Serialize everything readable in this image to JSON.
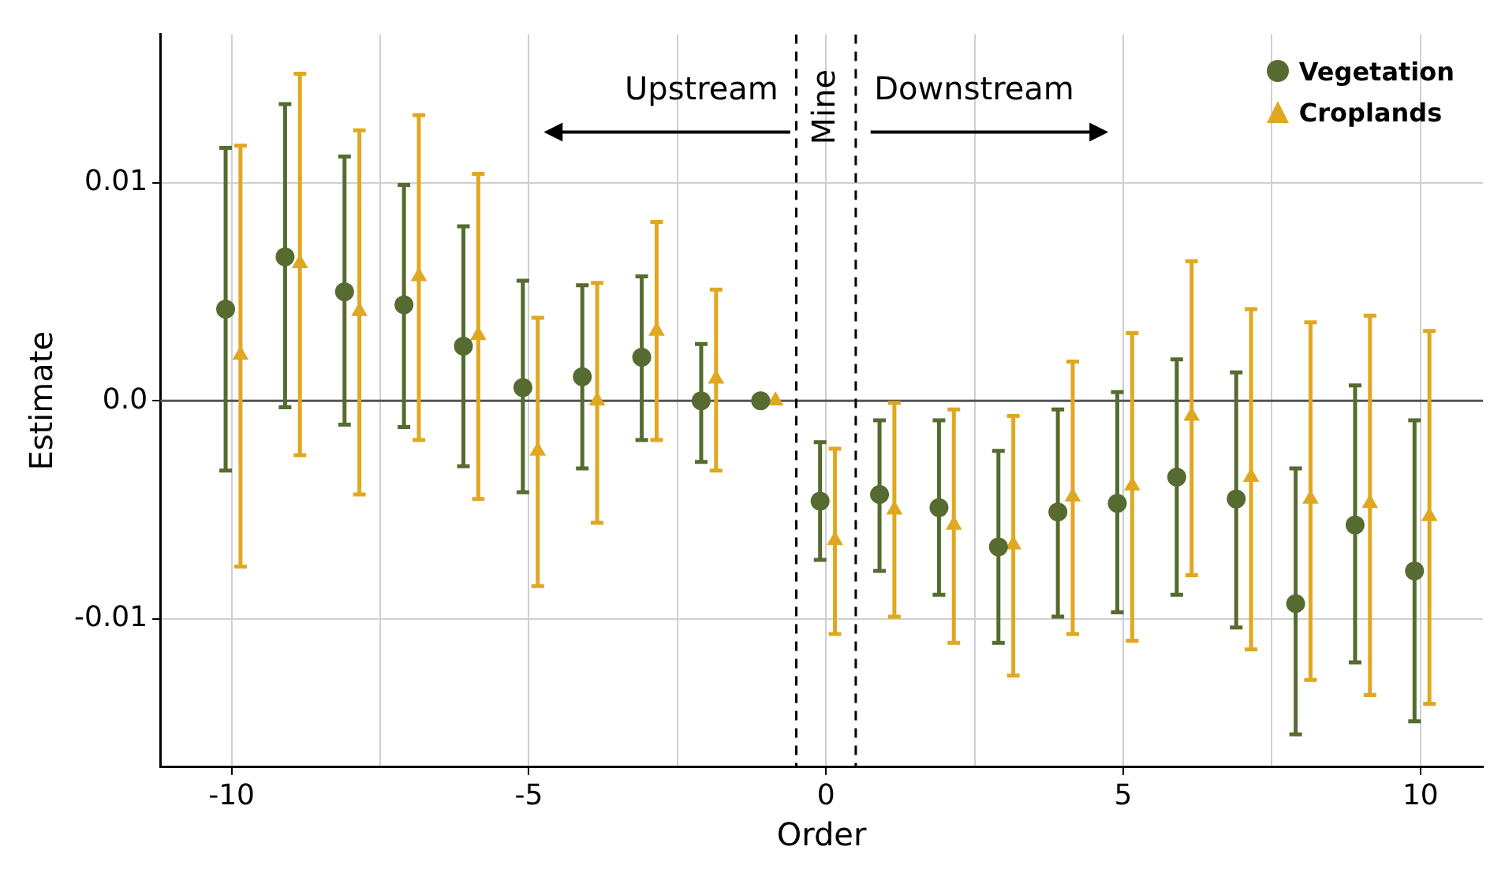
{
  "chart_data": {
    "type": "scatter",
    "xlabel": "Order",
    "ylabel": "Estimate",
    "xlim": [
      -11.2,
      11.05
    ],
    "ylim": [
      -0.0168,
      0.0168
    ],
    "xticks": [
      -10,
      {
        "value": -7.5,
        "label": null
      },
      -5,
      {
        "value": -2.5,
        "label": null
      },
      0,
      {
        "value": 2.5,
        "label": null
      },
      5,
      {
        "value": 7.5,
        "label": null
      },
      10
    ],
    "yticks": [
      {
        "value": -0.01,
        "label": "-0.01"
      },
      {
        "value": 0,
        "label": "0.0"
      },
      {
        "value": 0.01,
        "label": "0.01"
      }
    ],
    "grid": true,
    "legend": "top right",
    "series": [
      {
        "name": "Vegetation",
        "color": "#556b2f",
        "marker": "circle",
        "x": [
          -10.1,
          -9.1,
          -8.1,
          -7.1,
          -6.1,
          -5.1,
          -4.1,
          -3.1,
          -2.1,
          -1.1,
          -0.1,
          0.9,
          1.9,
          2.9,
          3.9,
          4.9,
          5.9,
          6.9,
          7.9,
          8.9,
          9.9
        ],
        "values": [
          0.0042,
          0.0066,
          0.005,
          0.0044,
          0.0025,
          0.0006,
          0.0011,
          0.002,
          0.0,
          0.0,
          -0.0046,
          -0.0043,
          -0.0049,
          -0.0067,
          -0.0051,
          -0.0047,
          -0.0035,
          -0.0045,
          -0.0093,
          -0.0057,
          -0.0078
        ],
        "errors": [
          [
            -0.0032,
            0.0116
          ],
          [
            -0.0003,
            0.0136
          ],
          [
            -0.0011,
            0.0112
          ],
          [
            -0.0012,
            0.0099
          ],
          [
            -0.003,
            0.008
          ],
          [
            -0.0042,
            0.0055
          ],
          [
            -0.0031,
            0.0053
          ],
          [
            -0.0018,
            0.0057
          ],
          [
            -0.0028,
            0.0026
          ],
          null,
          [
            -0.0073,
            -0.0019
          ],
          [
            -0.0078,
            -0.0009
          ],
          [
            -0.0089,
            -0.0009
          ],
          [
            -0.0111,
            -0.0023
          ],
          [
            -0.0099,
            -0.0004
          ],
          [
            -0.0097,
            0.0004
          ],
          [
            -0.0089,
            0.0019
          ],
          [
            -0.0104,
            0.0013
          ],
          [
            -0.0153,
            -0.0031
          ],
          [
            -0.012,
            0.0007
          ],
          [
            -0.0147,
            -0.0009
          ]
        ]
      },
      {
        "name": "Croplands",
        "color": "#e0a820",
        "marker": "triangle",
        "x": [
          -9.85,
          -8.85,
          -7.85,
          -6.85,
          -5.85,
          -4.85,
          -3.85,
          -2.85,
          -1.85,
          -0.85,
          0.15,
          1.15,
          2.15,
          3.15,
          4.15,
          5.15,
          6.15,
          7.15,
          8.15,
          9.15,
          10.15
        ],
        "values": [
          0.0021,
          0.0063,
          0.0041,
          0.0057,
          0.003,
          -0.0023,
          0.0,
          0.0032,
          0.001,
          0.0,
          -0.0064,
          -0.005,
          -0.0057,
          -0.0066,
          -0.0044,
          -0.0039,
          -0.0007,
          -0.0035,
          -0.0045,
          -0.0047,
          -0.0053
        ],
        "errors": [
          [
            -0.0076,
            0.0117
          ],
          [
            -0.0025,
            0.015
          ],
          [
            -0.0043,
            0.0124
          ],
          [
            -0.0018,
            0.0131
          ],
          [
            -0.0045,
            0.0104
          ],
          [
            -0.0085,
            0.0038
          ],
          [
            -0.0056,
            0.0054
          ],
          [
            -0.0018,
            0.0082
          ],
          [
            -0.0032,
            0.0051
          ],
          null,
          [
            -0.0107,
            -0.0022
          ],
          [
            -0.0099,
            -0.0001
          ],
          [
            -0.0111,
            -0.0004
          ],
          [
            -0.0126,
            -0.0007
          ],
          [
            -0.0107,
            0.0018
          ],
          [
            -0.011,
            0.0031
          ],
          [
            -0.008,
            0.0064
          ],
          [
            -0.0114,
            0.0042
          ],
          [
            -0.0128,
            0.0036
          ],
          [
            -0.0135,
            0.0039
          ],
          [
            -0.0139,
            0.0032
          ]
        ]
      }
    ],
    "ref_lines": [
      {
        "axis": "y",
        "value": 0,
        "color": "#555555",
        "line_style": "solid"
      },
      {
        "axis": "x",
        "value": -0.5,
        "color": "#000000",
        "line_style": "dashed"
      },
      {
        "axis": "x",
        "value": 0.5,
        "color": "#000000",
        "line_style": "dashed"
      }
    ],
    "annotations": [
      "Upstream",
      "Mine",
      "Downstream"
    ]
  }
}
